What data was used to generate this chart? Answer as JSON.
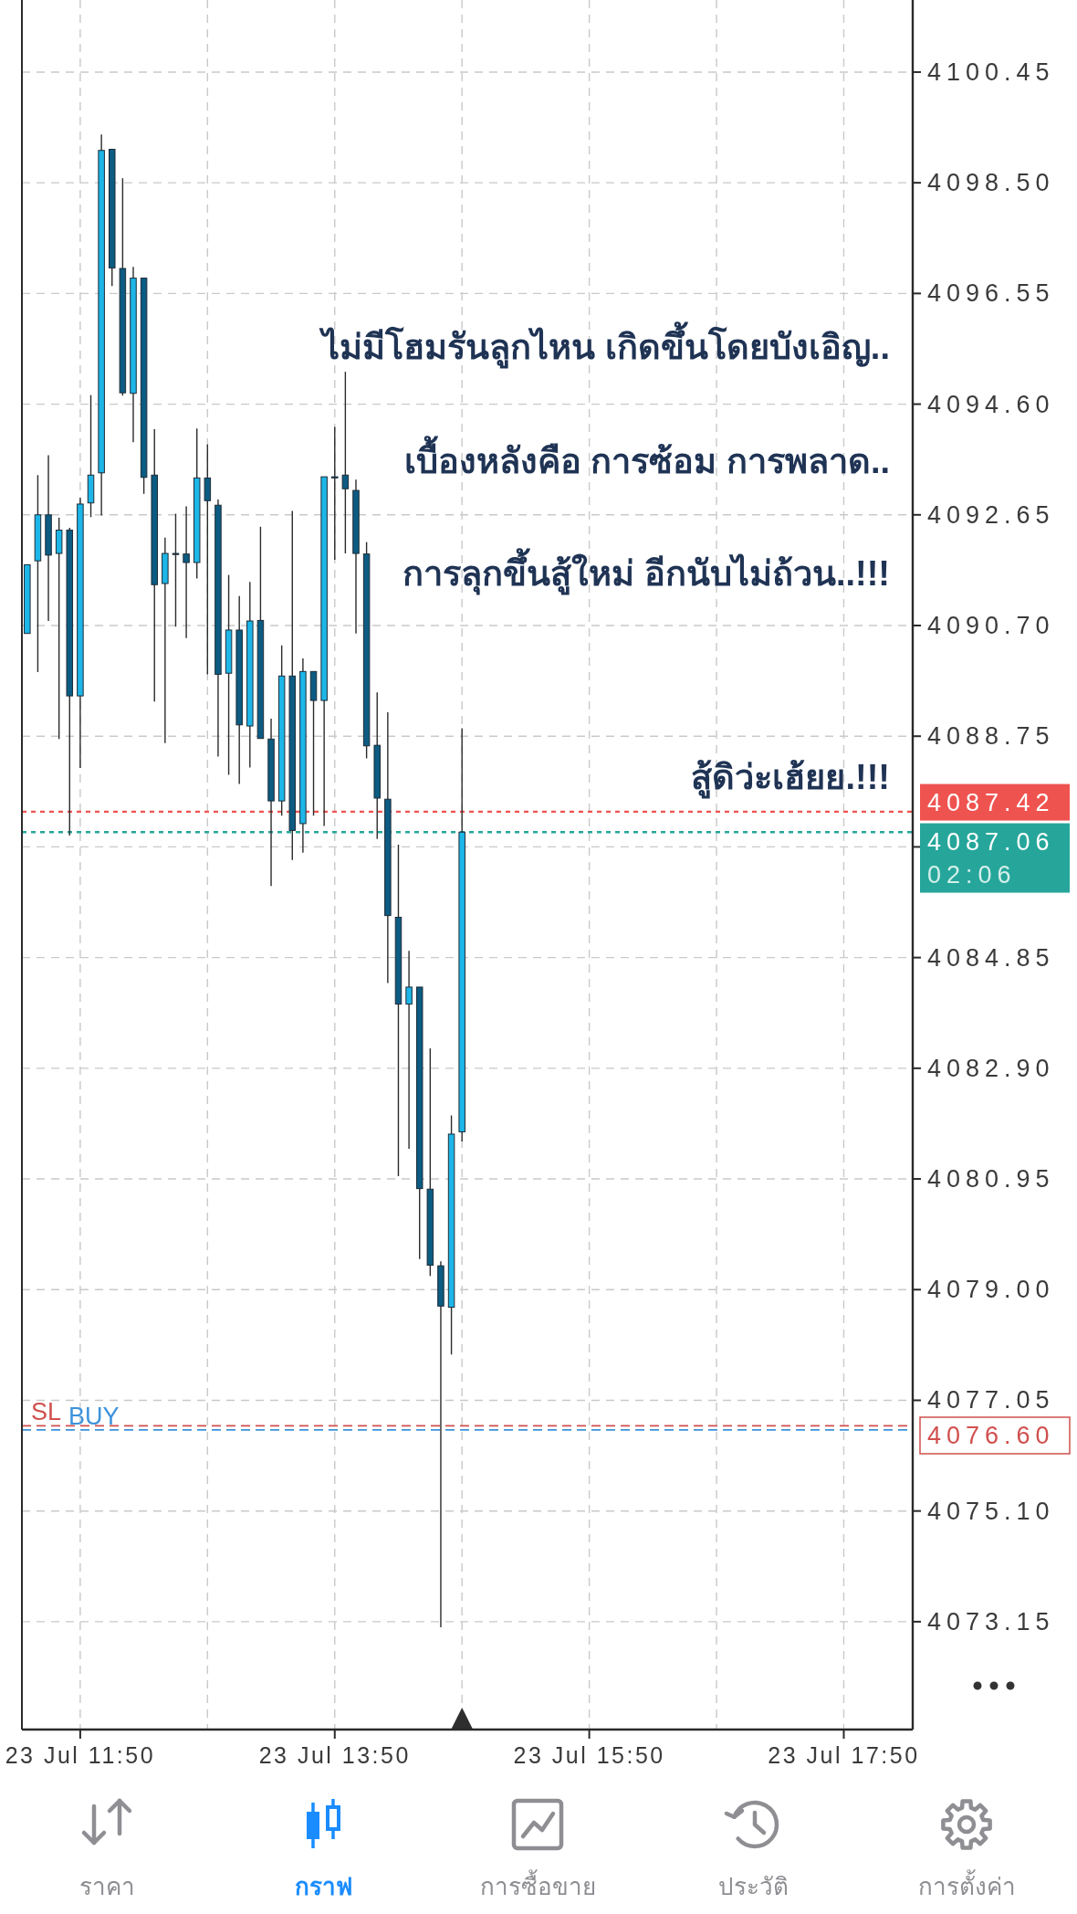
{
  "chart_data": {
    "type": "candlestick",
    "categories": [
      null,
      null,
      null,
      null,
      null,
      "23 Jul 11:50",
      null,
      null,
      null,
      null,
      null,
      null,
      null,
      null,
      null,
      null,
      null,
      null,
      null,
      null,
      null,
      null,
      null,
      null,
      null,
      null,
      null,
      null,
      null,
      "23 Jul 13:50",
      null,
      null,
      null,
      null,
      null,
      null,
      null,
      null,
      null,
      null,
      null,
      null,
      null,
      null,
      null,
      null,
      null,
      null,
      null,
      null,
      null,
      null,
      null,
      "23 Jul 15:50",
      null,
      null,
      null,
      null,
      null,
      null,
      null,
      null,
      null,
      null,
      null,
      null,
      null,
      null,
      null,
      null,
      null,
      null,
      null,
      null,
      null,
      null,
      null,
      "23 Jul 17:50",
      null,
      null,
      null,
      null,
      null,
      null
    ],
    "ohlc": [
      [
        4090.56,
        4091.77,
        4090.56,
        4091.77
      ],
      [
        4091.84,
        4093.35,
        4089.88,
        4092.65
      ],
      [
        4092.65,
        4093.7,
        4090.78,
        4091.94
      ],
      [
        4091.97,
        4092.6,
        4088.7,
        4092.38
      ],
      [
        4092.38,
        4092.42,
        4087.0,
        4089.46
      ],
      [
        4089.46,
        4092.95,
        4088.19,
        4092.84
      ],
      [
        4092.86,
        4094.76,
        4092.61,
        4093.35
      ],
      [
        4093.39,
        4099.35,
        4092.64,
        4099.07
      ],
      [
        4099.09,
        4099.09,
        4096.68,
        4097.0
      ],
      [
        4096.99,
        4098.58,
        4094.75,
        4094.8
      ],
      [
        4094.79,
        4097.02,
        4093.93,
        4096.82
      ],
      [
        4096.82,
        4096.82,
        4093.02,
        4093.31
      ],
      [
        4093.35,
        4094.16,
        4089.36,
        4091.42
      ],
      [
        4091.44,
        4092.25,
        4088.63,
        4091.97
      ],
      [
        4091.97,
        4092.67,
        4090.68,
        4091.97
      ],
      [
        4091.96,
        4092.8,
        4090.48,
        4091.81
      ],
      [
        4091.81,
        4094.17,
        4091.53,
        4093.3
      ],
      [
        4093.3,
        4093.89,
        4089.84,
        4092.9
      ],
      [
        4092.82,
        4092.92,
        4088.39,
        4089.84
      ],
      [
        4089.86,
        4091.59,
        4088.07,
        4090.62
      ],
      [
        4090.62,
        4091.22,
        4087.91,
        4088.95
      ],
      [
        4088.93,
        4091.47,
        4088.2,
        4090.78
      ],
      [
        4090.79,
        4092.44,
        4088.71,
        4088.71
      ],
      [
        4088.7,
        4089.06,
        4086.11,
        4087.61
      ],
      [
        4087.61,
        4090.35,
        4087.35,
        4089.81
      ],
      [
        4089.81,
        4092.72,
        4086.57,
        4087.09
      ],
      [
        4087.21,
        4090.12,
        4086.7,
        4089.89
      ],
      [
        4089.89,
        4089.89,
        4087.35,
        4089.38
      ],
      [
        4089.38,
        4093.32,
        4087.17,
        4093.32
      ],
      [
        4093.32,
        4094.2,
        4091.86,
        4093.3
      ],
      [
        4093.35,
        4095.17,
        4091.97,
        4093.11
      ],
      [
        4093.08,
        4093.27,
        4090.56,
        4091.97
      ],
      [
        4091.96,
        4092.17,
        4088.36,
        4088.58
      ],
      [
        4088.59,
        4089.52,
        4086.94,
        4087.66
      ],
      [
        4087.64,
        4089.17,
        4084.4,
        4085.59
      ],
      [
        4085.56,
        4086.84,
        4081.0,
        4084.03
      ],
      [
        4084.03,
        4084.97,
        4081.48,
        4084.33
      ],
      [
        4084.33,
        4084.33,
        4079.54,
        4080.78
      ],
      [
        4080.77,
        4083.25,
        4079.24,
        4079.43
      ],
      [
        4079.42,
        4079.5,
        4073.05,
        4078.71
      ],
      [
        4078.69,
        4082.07,
        4077.86,
        4081.74
      ],
      [
        4081.78,
        4088.89,
        4081.61,
        4087.06
      ],
      null,
      null,
      null,
      null,
      null,
      null,
      null,
      null,
      null,
      null,
      null,
      null,
      null,
      null,
      null,
      null,
      null,
      null,
      null,
      null,
      null,
      null,
      null,
      null,
      null,
      null,
      null,
      null,
      null,
      null,
      null,
      null,
      null,
      null,
      null,
      null,
      null,
      null,
      null,
      null,
      null,
      null
    ],
    "colors": [
      "#1db6e9",
      "#1db6e9",
      "#0c5b82",
      "#1db6e9",
      "#0c5b82",
      "#1db6e9",
      "#1db6e9",
      "#1db6e9",
      "#0c5b82",
      "#0c5b82",
      "#1db6e9",
      "#0c5b82",
      "#0c5b82",
      "#1db6e9",
      "#0c5b82",
      "#0c5b82",
      "#1db6e9",
      "#0c5b82",
      "#0c5b82",
      "#1db6e9",
      "#0c5b82",
      "#1db6e9",
      "#0c5b82",
      "#0c5b82",
      "#1db6e9",
      "#0c5b82",
      "#1db6e9",
      "#0c5b82",
      "#1db6e9",
      "#0c5b82",
      "#0c5b82",
      "#0c5b82",
      "#0c5b82",
      "#0c5b82",
      "#0c5b82",
      "#0c5b82",
      "#1db6e9",
      "#0c5b82",
      "#0c5b82",
      "#0c5b82",
      "#1db6e9",
      "#1db6e9",
      null,
      null,
      null,
      null,
      null,
      null,
      null,
      null,
      null,
      null,
      null,
      null,
      null,
      null,
      null,
      null,
      null,
      null,
      null,
      null,
      null,
      null,
      null,
      null,
      null,
      null,
      null,
      null,
      null,
      null,
      null,
      null,
      null,
      null,
      null,
      null,
      null,
      null,
      null,
      null,
      null,
      null
    ],
    "ylim": [
      4071.25,
      4101.72
    ],
    "yticks": [
      {
        "value": 4100.45,
        "label": "4100.45"
      },
      {
        "value": 4098.5,
        "label": "4098.50"
      },
      {
        "value": 4096.55,
        "label": "4096.55"
      },
      {
        "value": 4094.6,
        "label": "4094.60"
      },
      {
        "value": 4092.65,
        "label": "4092.65"
      },
      {
        "value": 4090.7,
        "label": "4090.70"
      },
      {
        "value": 4088.75,
        "label": "4088.75"
      },
      {
        "value": 4086.8,
        "label": null
      },
      {
        "value": 4084.85,
        "label": "4084.85"
      },
      {
        "value": 4082.9,
        "label": "4082.90"
      },
      {
        "value": 4080.95,
        "label": "4080.95"
      },
      {
        "value": 4079.0,
        "label": "4079.00"
      },
      {
        "value": 4077.05,
        "label": "4077.05"
      },
      {
        "value": 4075.1,
        "label": "4075.10"
      },
      {
        "value": 4073.15,
        "label": "4073.15"
      }
    ],
    "grid": true,
    "ref_lines": [
      {
        "axis": "y",
        "value": 4087.42,
        "label": "4087.42",
        "color": "#ef5350",
        "line_style": "dotted"
      },
      {
        "axis": "y",
        "value": 4087.06,
        "label": "4087.06",
        "color": "#26a69a",
        "line_style": "dotted"
      },
      {
        "axis": "y",
        "value": 4076.6,
        "label": "SL",
        "color": "#d0504e",
        "line_style": "dashed"
      },
      {
        "axis": "y",
        "value": 4076.53,
        "label": "BUY",
        "color": "#3d93dc",
        "line_style": "dashed"
      }
    ],
    "annotations": [
      "ไม่มีโฮมรันลูกไหน เกิดขึ้นโดยบังเอิญ..",
      "เบื้องหลังคือ การซ้อม การพลาด..",
      "การลุกขึ้นสู้ใหม่ อีกนับไม่ถ้วน..!!!",
      "สู้ดิว่ะเฮ้ยย.!!!",
      "ราคา",
      "กราฟ",
      "การซื้อขาย",
      "ประวัติ",
      "การตั้งค่า",
      "02:06",
      "4076.60"
    ]
  }
}
